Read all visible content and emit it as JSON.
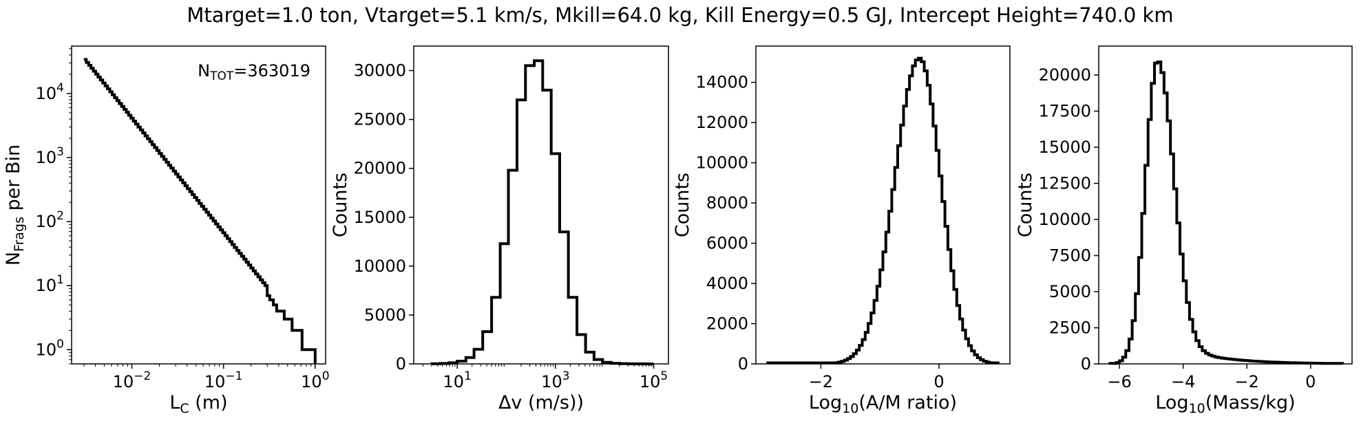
{
  "figure": {
    "suptitle": "Mtarget=1.0 ton, Vtarget=5.1 km/s, Mkill=64.0 kg, Kill Energy=0.5 GJ, Intercept Height=740.0 km"
  },
  "chart_data": [
    {
      "id": "lc",
      "type": "line",
      "drawstyle": "steps",
      "xscale": "log",
      "yscale": "log",
      "xlabel": {
        "main": "L",
        "sub": "C",
        "tail": " (m)"
      },
      "ylabel": {
        "main": "N",
        "sub": "Frags",
        "tail": " per Bin"
      },
      "annotation": {
        "main": "N",
        "sub": "TOT",
        "tail": "=363019",
        "position": "top-right"
      },
      "xlim": [
        0.0022,
        1.3
      ],
      "ylim": [
        0.6,
        55000
      ],
      "xticks": [
        {
          "value": 0.01,
          "base": "10",
          "exp": "−2"
        },
        {
          "value": 0.1,
          "base": "10",
          "exp": "−1"
        },
        {
          "value": 1,
          "base": "10",
          "exp": "0"
        }
      ],
      "yticks": [
        {
          "value": 1,
          "base": "10",
          "exp": "0"
        },
        {
          "value": 10,
          "base": "10",
          "exp": "1"
        },
        {
          "value": 100,
          "base": "10",
          "exp": "2"
        },
        {
          "value": 1000,
          "base": "10",
          "exp": "3"
        },
        {
          "value": 10000,
          "base": "10",
          "exp": "4"
        }
      ],
      "powerlaw": {
        "x_start": 0.003,
        "x_end": 0.3,
        "y_start": 34000,
        "y_end": 9
      },
      "tail_x": [
        0.3,
        0.32,
        0.35,
        0.38,
        0.42,
        0.46,
        0.5,
        0.56,
        0.64,
        0.72,
        0.8,
        0.9,
        1.0
      ],
      "tail_y": [
        7,
        6,
        5,
        4,
        4,
        3,
        3,
        2,
        2,
        1,
        1,
        1,
        0.6
      ]
    },
    {
      "id": "dv",
      "type": "histogram",
      "xscale": "log",
      "yscale": "linear",
      "xlabel": "Δv (m/s))",
      "ylabel": "Counts",
      "xlim": [
        1.3,
        200000
      ],
      "ylim": [
        0,
        32500
      ],
      "xticks": [
        {
          "value": 10,
          "base": "10",
          "exp": "1"
        },
        {
          "value": 1000,
          "base": "10",
          "exp": "3"
        },
        {
          "value": 100000,
          "base": "10",
          "exp": "5"
        }
      ],
      "yticks": [
        0,
        5000,
        10000,
        15000,
        20000,
        25000,
        30000
      ],
      "edges": [
        3,
        4.5,
        6.8,
        10,
        15,
        22,
        33,
        50,
        75,
        110,
        165,
        245,
        370,
        550,
        820,
        1220,
        1830,
        2740,
        4100,
        6100,
        9100,
        13600,
        20400,
        30500,
        45500,
        68000,
        100000
      ],
      "counts": [
        15,
        40,
        110,
        280,
        650,
        1500,
        3300,
        6800,
        12300,
        19800,
        27000,
        30500,
        31000,
        28000,
        21500,
        13500,
        6800,
        3000,
        1200,
        450,
        160,
        60,
        25,
        10,
        5,
        2
      ]
    },
    {
      "id": "am",
      "type": "histogram",
      "xscale": "linear",
      "yscale": "linear",
      "xlabel": {
        "main": "Log",
        "sub": "10",
        "tail": "(A/M ratio)"
      },
      "ylabel": "Counts",
      "xlim": [
        -3.1,
        1.2
      ],
      "ylim": [
        0,
        15800
      ],
      "xticks": [
        {
          "value": -2,
          "label": "−2"
        },
        {
          "value": 0,
          "label": "0"
        }
      ],
      "yticks": [
        0,
        2000,
        4000,
        6000,
        8000,
        10000,
        12000,
        14000
      ],
      "gauss": {
        "center": -0.33,
        "peak": 15200,
        "sigma_left": 0.42,
        "sigma_right": 0.36,
        "x_start": -2.9,
        "x_end": 1.0,
        "bin_width": 0.05,
        "floor": 50
      }
    },
    {
      "id": "mass",
      "type": "histogram",
      "xscale": "linear",
      "yscale": "linear",
      "xlabel": {
        "main": "Log",
        "sub": "10",
        "tail": "(Mass/kg)"
      },
      "ylabel": "Counts",
      "xlim": [
        -6.65,
        1.3
      ],
      "ylim": [
        0,
        22000
      ],
      "xticks": [
        {
          "value": -6,
          "label": "−6"
        },
        {
          "value": -4,
          "label": "−4"
        },
        {
          "value": -2,
          "label": "−2"
        },
        {
          "value": 0,
          "label": "0"
        }
      ],
      "yticks": [
        0,
        2500,
        5000,
        7500,
        10000,
        12500,
        15000,
        17500,
        20000
      ],
      "gauss": {
        "center": -4.8,
        "peak": 21000,
        "sigma_left": 0.38,
        "sigma_right": 0.5,
        "x_start": -6.3,
        "x_end": 1.0,
        "bin_width": 0.1,
        "floor": 40,
        "tail_amp": 1700,
        "tail_scale": 1.4
      }
    }
  ]
}
